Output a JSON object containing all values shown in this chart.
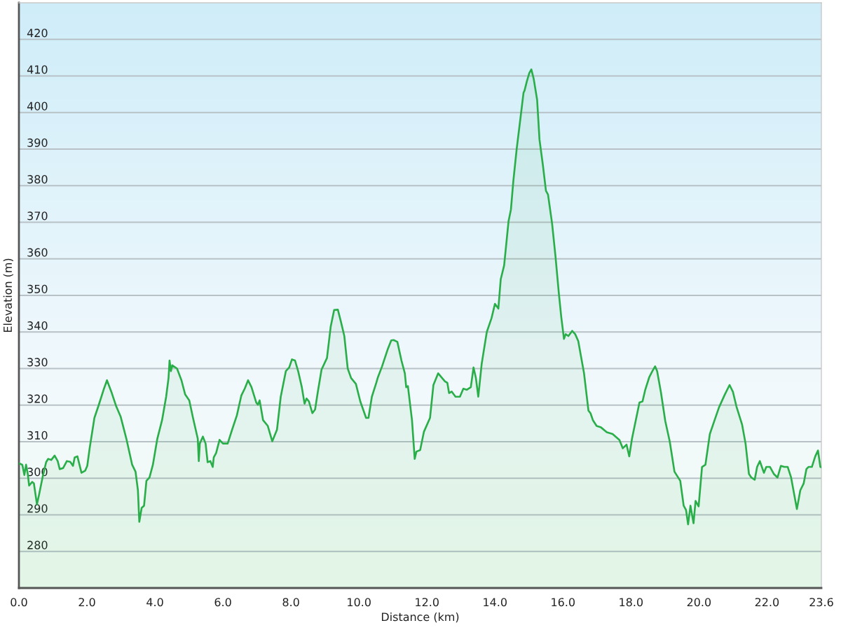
{
  "chart_data": {
    "type": "area",
    "xlabel": "Distance (km)",
    "ylabel": "Elevation (m)",
    "x": [
      0.0,
      0.1,
      0.16,
      0.21,
      0.26,
      0.3,
      0.39,
      0.44,
      0.53,
      0.59,
      0.7,
      0.8,
      0.86,
      0.95,
      1.05,
      1.14,
      1.2,
      1.3,
      1.41,
      1.51,
      1.59,
      1.64,
      1.72,
      1.84,
      1.95,
      2.01,
      2.08,
      2.22,
      2.35,
      2.49,
      2.59,
      2.72,
      2.86,
      2.99,
      3.16,
      3.33,
      3.43,
      3.5,
      3.54,
      3.61,
      3.68,
      3.75,
      3.84,
      3.94,
      4.07,
      4.21,
      4.33,
      4.4,
      4.43,
      4.47,
      4.51,
      4.65,
      4.78,
      4.89,
      5.01,
      5.12,
      5.26,
      5.29,
      5.32,
      5.41,
      5.49,
      5.55,
      5.63,
      5.7,
      5.73,
      5.8,
      5.9,
      6.0,
      6.14,
      6.27,
      6.41,
      6.54,
      6.64,
      6.74,
      6.84,
      6.98,
      7.03,
      7.08,
      7.18,
      7.32,
      7.45,
      7.59,
      7.7,
      7.85,
      7.95,
      8.03,
      8.12,
      8.22,
      8.32,
      8.4,
      8.46,
      8.53,
      8.63,
      8.71,
      8.79,
      8.9,
      9.06,
      9.17,
      9.27,
      9.38,
      9.47,
      9.57,
      9.67,
      9.77,
      9.91,
      10.04,
      10.21,
      10.28,
      10.38,
      10.51,
      10.55,
      10.68,
      10.84,
      10.95,
      11.02,
      11.13,
      11.25,
      11.35,
      11.39,
      11.44,
      11.56,
      11.64,
      11.69,
      11.8,
      11.91,
      12.09,
      12.19,
      12.33,
      12.53,
      12.6,
      12.65,
      12.73,
      12.84,
      12.97,
      13.07,
      13.17,
      13.29,
      13.37,
      13.44,
      13.51,
      13.61,
      13.76,
      13.9,
      14.0,
      14.1,
      14.17,
      14.27,
      14.4,
      14.47,
      14.54,
      14.64,
      14.74,
      14.84,
      14.87,
      14.94,
      15.01,
      15.07,
      15.14,
      15.24,
      15.31,
      15.41,
      15.5,
      15.56,
      15.68,
      15.78,
      15.88,
      15.95,
      16.03,
      16.08,
      16.16,
      16.27,
      16.36,
      16.45,
      16.62,
      16.75,
      16.81,
      16.88,
      16.99,
      17.12,
      17.29,
      17.46,
      17.66,
      17.76,
      17.87,
      17.95,
      18.03,
      18.25,
      18.34,
      18.42,
      18.54,
      18.63,
      18.71,
      18.77,
      18.88,
      19.01,
      19.14,
      19.28,
      19.45,
      19.55,
      19.62,
      19.68,
      19.75,
      19.84,
      19.9,
      19.99,
      20.09,
      20.19,
      20.32,
      20.46,
      20.59,
      20.76,
      20.9,
      21.0,
      21.1,
      21.27,
      21.37,
      21.47,
      21.54,
      21.64,
      21.71,
      21.79,
      21.91,
      21.98,
      22.09,
      22.2,
      22.31,
      22.41,
      22.51,
      22.61,
      22.71,
      22.88,
      22.98,
      23.08,
      23.16,
      23.22,
      23.32,
      23.42,
      23.5,
      23.57,
      23.6
    ],
    "values": [
      304.1,
      303.7,
      300.9,
      303.7,
      301.2,
      298.0,
      299.0,
      298.6,
      292.9,
      295.4,
      300.5,
      304.4,
      305.3,
      305.0,
      306.2,
      304.7,
      302.5,
      302.8,
      304.7,
      304.5,
      303.4,
      305.7,
      306.0,
      301.5,
      302.1,
      303.4,
      308.2,
      316.5,
      320.1,
      324.2,
      326.8,
      323.6,
      319.7,
      316.9,
      310.8,
      303.7,
      301.8,
      296.7,
      288.1,
      291.9,
      292.5,
      299.3,
      300.2,
      303.7,
      310.8,
      315.9,
      322.3,
      327.4,
      332.2,
      329.3,
      330.9,
      330.0,
      326.8,
      322.9,
      321.3,
      316.5,
      310.8,
      304.7,
      309.5,
      311.4,
      309.5,
      304.4,
      304.7,
      303.1,
      305.7,
      306.9,
      310.5,
      309.5,
      309.5,
      313.3,
      317.2,
      322.6,
      324.5,
      326.8,
      324.9,
      320.7,
      320.1,
      321.3,
      315.9,
      314.3,
      310.1,
      313.3,
      322.3,
      329.3,
      330.3,
      332.5,
      332.2,
      329.0,
      324.9,
      320.4,
      321.8,
      321.0,
      317.8,
      318.8,
      323.6,
      329.7,
      332.9,
      341.5,
      346.0,
      346.1,
      342.8,
      338.9,
      330.0,
      327.4,
      325.8,
      321.0,
      316.5,
      316.5,
      322.3,
      326.1,
      327.4,
      330.6,
      335.1,
      337.7,
      337.8,
      337.3,
      332.2,
      328.7,
      324.9,
      325.2,
      315.9,
      305.3,
      307.3,
      307.7,
      312.7,
      316.5,
      325.5,
      328.7,
      326.5,
      326.1,
      323.3,
      323.7,
      322.3,
      322.3,
      324.5,
      324.2,
      324.9,
      330.3,
      327.4,
      322.3,
      331.3,
      340.0,
      343.8,
      347.7,
      346.4,
      354.4,
      358.2,
      370.3,
      373.5,
      381.2,
      390.1,
      397.7,
      405.4,
      406.0,
      408.6,
      410.8,
      411.8,
      409.2,
      403.5,
      392.6,
      385.6,
      378.6,
      377.6,
      369.7,
      360.7,
      350.5,
      344.1,
      338.1,
      339.4,
      338.9,
      340.3,
      339.4,
      337.5,
      328.7,
      318.5,
      317.8,
      315.9,
      314.3,
      313.9,
      312.6,
      312.1,
      310.5,
      308.2,
      309.2,
      306.0,
      310.8,
      320.7,
      321.0,
      324.2,
      327.7,
      329.3,
      330.6,
      329.3,
      323.6,
      315.6,
      310.1,
      301.8,
      299.3,
      292.5,
      291.3,
      287.4,
      292.5,
      287.7,
      293.8,
      292.3,
      303.1,
      303.7,
      312.1,
      315.9,
      319.4,
      322.9,
      325.5,
      323.6,
      319.7,
      314.6,
      309.5,
      301.2,
      300.2,
      299.6,
      303.1,
      304.7,
      301.5,
      303.1,
      303.1,
      301.2,
      300.2,
      303.4,
      303.1,
      303.1,
      300.2,
      291.6,
      296.7,
      298.6,
      302.5,
      303.1,
      303.1,
      306.0,
      307.6,
      303.1,
      303.0
    ],
    "color": "#2aae4a",
    "xlim": [
      0,
      23.6
    ],
    "ylim": [
      270,
      430
    ],
    "xticks": [
      {
        "value": 0,
        "label": "0.0"
      },
      {
        "value": 2,
        "label": "2.0"
      },
      {
        "value": 4,
        "label": "4.0"
      },
      {
        "value": 6,
        "label": "6.0"
      },
      {
        "value": 8,
        "label": "8.0"
      },
      {
        "value": 10,
        "label": "10.0"
      },
      {
        "value": 12,
        "label": "12.0"
      },
      {
        "value": 14,
        "label": "14.0"
      },
      {
        "value": 16,
        "label": "16.0"
      },
      {
        "value": 18,
        "label": "18.0"
      },
      {
        "value": 20,
        "label": "20.0"
      },
      {
        "value": 22,
        "label": "22.0"
      },
      {
        "value": 23.6,
        "label": "23.6"
      }
    ],
    "yticks": [
      280,
      290,
      300,
      310,
      320,
      330,
      340,
      350,
      360,
      370,
      380,
      390,
      400,
      410,
      420
    ],
    "grid": "y"
  }
}
